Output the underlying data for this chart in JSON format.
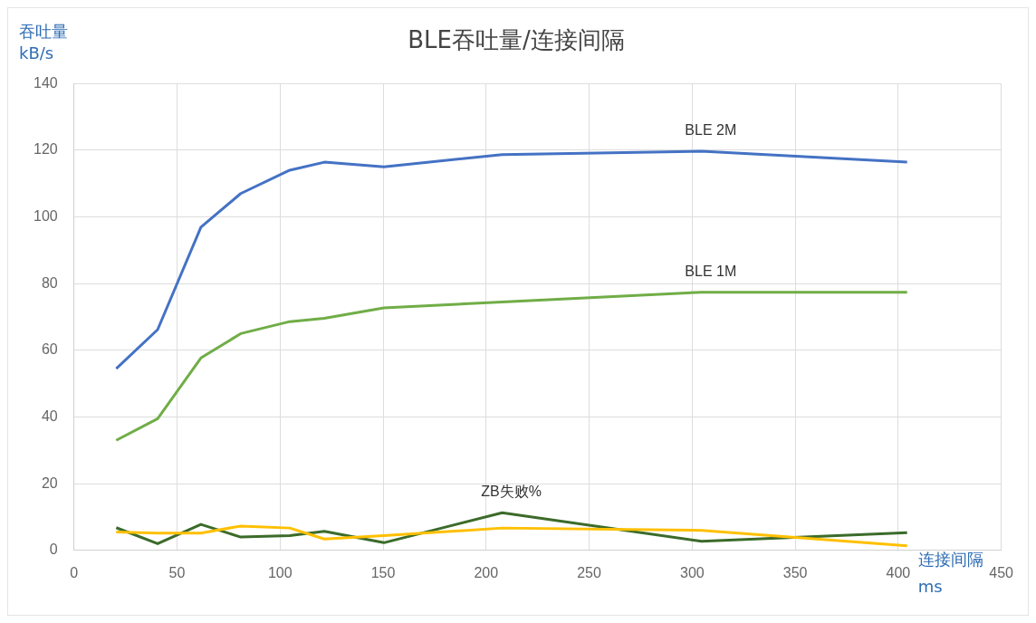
{
  "chart_data": {
    "type": "line",
    "title": "BLE吞吐量/连接间隔",
    "ylabel": "吞吐量\nkB/s",
    "xlabel": "连接间隔\nms",
    "x": [
      20.5,
      40.6,
      61.6,
      80.9,
      104.7,
      121.5,
      150.4,
      207.8,
      304.6,
      404.3
    ],
    "series": [
      {
        "name": "BLE 2M",
        "color": "#4472c4",
        "values": [
          54.5,
          66.2,
          96.9,
          107,
          114,
          116.4,
          115,
          118.7,
          119.7,
          116.4
        ]
      },
      {
        "name": "BLE 1M",
        "color": "#70ad47",
        "values": [
          33,
          39.5,
          57.7,
          65,
          68.6,
          69.6,
          72.7,
          74.5,
          77.4,
          77.4
        ]
      },
      {
        "color": "#ffc000",
        "values": [
          5.5,
          5.2,
          5.2,
          7.3,
          6.7,
          3.4,
          4.4,
          6.7,
          6,
          1.4
        ]
      },
      {
        "name": "ZB失败%",
        "color": "#3b6b2a",
        "values": [
          6.8,
          2,
          7.8,
          4,
          4.4,
          5.7,
          2.3,
          11.3,
          2.7,
          5.3
        ]
      }
    ],
    "xlim": [
      0,
      450
    ],
    "xticks": [
      0,
      50,
      100,
      150,
      200,
      250,
      300,
      350,
      400,
      450
    ],
    "ylim": [
      0,
      140
    ],
    "yticks": [
      0,
      20,
      40,
      60,
      80,
      100,
      120,
      140
    ],
    "grid": true,
    "legend": false,
    "marker": "none",
    "line_style": "solid"
  }
}
